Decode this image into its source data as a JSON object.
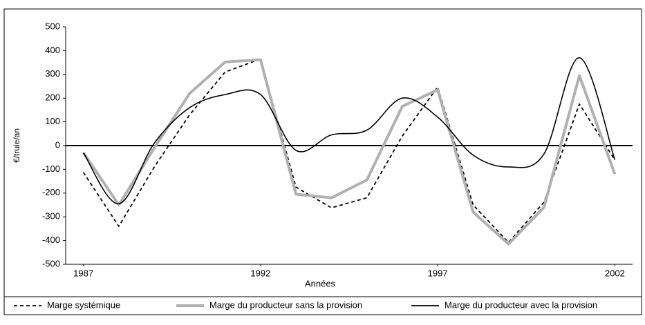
{
  "chart_data": {
    "type": "line",
    "x_label": "Années",
    "y_label": "€/truie/an",
    "x": [
      1987,
      1988,
      1989,
      1990,
      1991,
      1992,
      1993,
      1994,
      1995,
      1996,
      1997,
      1998,
      1999,
      2000,
      2001,
      2002
    ],
    "xlim": [
      1986.5,
      2002.5
    ],
    "xticks": [
      1987,
      1992,
      1997,
      2002
    ],
    "ylim": [
      -500,
      500
    ],
    "yticks": [
      -500,
      -400,
      -300,
      -200,
      -100,
      0,
      100,
      200,
      300,
      400,
      500
    ],
    "series": [
      {
        "name": "Marge systémique",
        "color": "#000000",
        "style": "dashed",
        "smooth": false,
        "values": [
          -113,
          -340,
          -90,
          130,
          310,
          365,
          -175,
          -262,
          -220,
          40,
          247,
          -250,
          -408,
          -238,
          175,
          -60
        ]
      },
      {
        "name": "Marge du producteur sans la provision",
        "color": "#b0b0b0",
        "style": "solid",
        "smooth": false,
        "values": [
          -30,
          -250,
          -10,
          220,
          352,
          362,
          -205,
          -220,
          -145,
          165,
          235,
          -280,
          -415,
          -260,
          295,
          -120
        ]
      },
      {
        "name": "Marge du producteur avec la provision",
        "color": "#000000",
        "style": "solid",
        "smooth": true,
        "values": [
          -30,
          -245,
          10,
          160,
          215,
          215,
          -20,
          45,
          65,
          200,
          120,
          -40,
          -90,
          -35,
          370,
          -60
        ]
      }
    ]
  }
}
